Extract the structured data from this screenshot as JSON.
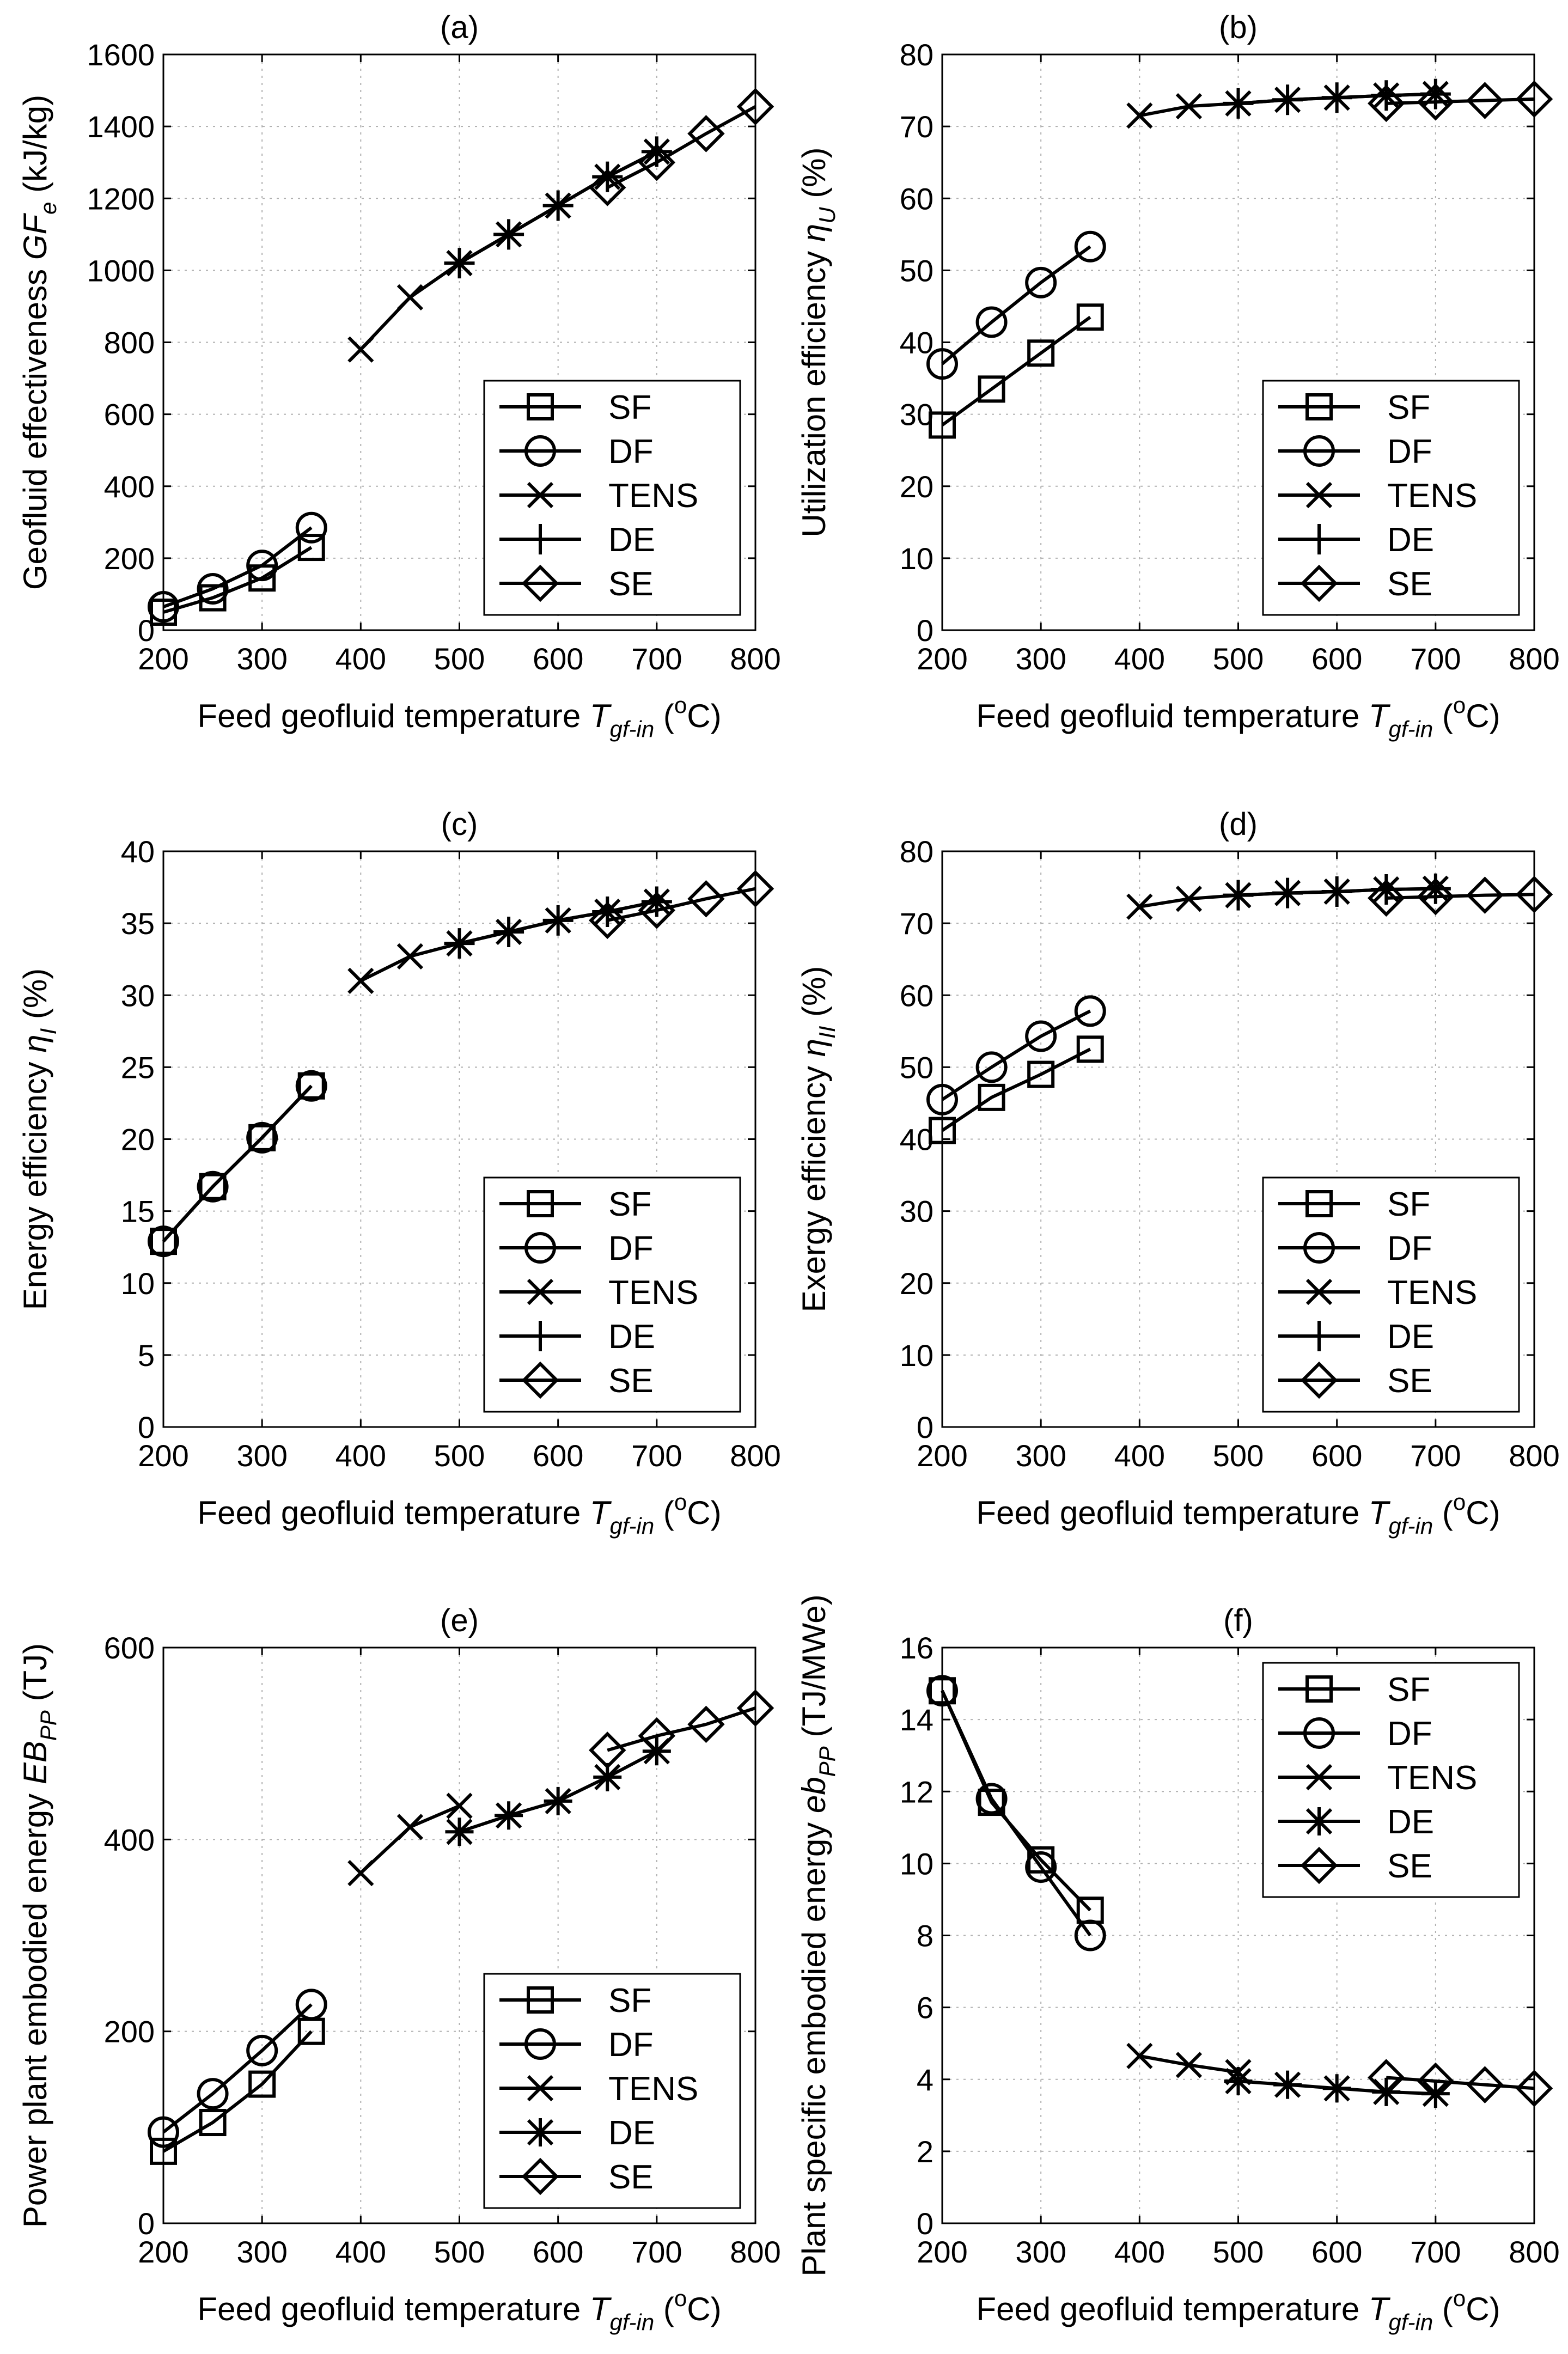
{
  "legend_labels": [
    "SF",
    "DF",
    "TENS",
    "DE",
    "SE"
  ],
  "xlabel": {
    "main": "Feed geofluid temperature ",
    "var": "T",
    "sub": "gf-in",
    "open": " (",
    "sup": "o",
    "close": "C)"
  },
  "chart_data": [
    {
      "type": "line",
      "title": "(a)",
      "ylabel": {
        "main": "Geofluid effectiveness  ",
        "var": "GF",
        "sub": "e",
        "unit": " (kJ/kg)"
      },
      "xlim": [
        200,
        800
      ],
      "ylim": [
        0,
        1600
      ],
      "xticks": [
        200,
        300,
        400,
        500,
        600,
        700,
        800
      ],
      "yticks": [
        0,
        200,
        400,
        600,
        800,
        1000,
        1200,
        1400,
        1600
      ],
      "grid": true,
      "legend_position": "lower-right",
      "series": [
        {
          "name": "SF",
          "marker": "square",
          "x": [
            200,
            250,
            300,
            350
          ],
          "y": [
            50,
            90,
            145,
            230
          ]
        },
        {
          "name": "DF",
          "marker": "circle",
          "x": [
            200,
            250,
            300,
            350
          ],
          "y": [
            65,
            115,
            180,
            285
          ]
        },
        {
          "name": "TENS",
          "marker": "x",
          "x": [
            400,
            450,
            500,
            550,
            600,
            650,
            700
          ],
          "y": [
            780,
            925,
            1020,
            1100,
            1180,
            1260,
            1330
          ]
        },
        {
          "name": "DE",
          "marker": "plus",
          "x": [
            500,
            550,
            600,
            650,
            700
          ],
          "y": [
            1020,
            1100,
            1180,
            1260,
            1330
          ]
        },
        {
          "name": "SE",
          "marker": "diamond",
          "x": [
            650,
            700,
            750,
            800
          ],
          "y": [
            1230,
            1300,
            1380,
            1455
          ]
        }
      ]
    },
    {
      "type": "line",
      "title": "(b)",
      "ylabel": {
        "main": "Utilization efficiency  ",
        "var": "η",
        "sub": "U",
        "unit": " (%)"
      },
      "xlim": [
        200,
        800
      ],
      "ylim": [
        0,
        80
      ],
      "xticks": [
        200,
        300,
        400,
        500,
        600,
        700,
        800
      ],
      "yticks": [
        0,
        10,
        20,
        30,
        40,
        50,
        60,
        70,
        80
      ],
      "grid": true,
      "legend_position": "lower-right",
      "series": [
        {
          "name": "SF",
          "marker": "square",
          "x": [
            200,
            250,
            300,
            350
          ],
          "y": [
            28.5,
            33.5,
            38.5,
            43.5
          ]
        },
        {
          "name": "DF",
          "marker": "circle",
          "x": [
            200,
            250,
            300,
            350
          ],
          "y": [
            37,
            42.8,
            48.3,
            53.3
          ]
        },
        {
          "name": "TENS",
          "marker": "x",
          "x": [
            400,
            450,
            500,
            550,
            600,
            650,
            700
          ],
          "y": [
            71.5,
            72.8,
            73.2,
            73.7,
            74,
            74.3,
            74.5
          ]
        },
        {
          "name": "DE",
          "marker": "plus",
          "x": [
            500,
            550,
            600,
            650,
            700
          ],
          "y": [
            73.2,
            73.7,
            74,
            74.3,
            74.5
          ]
        },
        {
          "name": "SE",
          "marker": "diamond",
          "x": [
            650,
            700,
            750,
            800
          ],
          "y": [
            73.2,
            73.4,
            73.6,
            73.8
          ]
        }
      ]
    },
    {
      "type": "line",
      "title": "(c)",
      "ylabel": {
        "main": "Energy efficiency  ",
        "var": "η",
        "sub": "I",
        "unit": "  (%)"
      },
      "xlim": [
        200,
        800
      ],
      "ylim": [
        0,
        40
      ],
      "xticks": [
        200,
        300,
        400,
        500,
        600,
        700,
        800
      ],
      "yticks": [
        0,
        5,
        10,
        15,
        20,
        25,
        30,
        35,
        40
      ],
      "grid": true,
      "legend_position": "lower-right",
      "series": [
        {
          "name": "SF",
          "marker": "square",
          "x": [
            200,
            250,
            300,
            350
          ],
          "y": [
            12.9,
            16.7,
            20.1,
            23.7
          ]
        },
        {
          "name": "DF",
          "marker": "circle",
          "x": [
            200,
            250,
            300,
            350
          ],
          "y": [
            12.9,
            16.7,
            20.1,
            23.7
          ]
        },
        {
          "name": "TENS",
          "marker": "x",
          "x": [
            400,
            450,
            500,
            550,
            600,
            650,
            700
          ],
          "y": [
            31,
            32.7,
            33.6,
            34.4,
            35.2,
            35.8,
            36.5
          ]
        },
        {
          "name": "DE",
          "marker": "plus",
          "x": [
            500,
            550,
            600,
            650,
            700
          ],
          "y": [
            33.6,
            34.4,
            35.2,
            35.8,
            36.5
          ]
        },
        {
          "name": "SE",
          "marker": "diamond",
          "x": [
            650,
            700,
            750,
            800
          ],
          "y": [
            35.2,
            35.9,
            36.7,
            37.4
          ]
        }
      ]
    },
    {
      "type": "line",
      "title": "(d)",
      "ylabel": {
        "main": "Exergy efficiency  ",
        "var": "η",
        "sub": "II",
        "unit": "  (%)"
      },
      "xlim": [
        200,
        800
      ],
      "ylim": [
        0,
        80
      ],
      "xticks": [
        200,
        300,
        400,
        500,
        600,
        700,
        800
      ],
      "yticks": [
        0,
        10,
        20,
        30,
        40,
        50,
        60,
        70,
        80
      ],
      "grid": true,
      "legend_position": "lower-right",
      "series": [
        {
          "name": "SF",
          "marker": "square",
          "x": [
            200,
            250,
            300,
            350
          ],
          "y": [
            41.2,
            45.8,
            49,
            52.5
          ]
        },
        {
          "name": "DF",
          "marker": "circle",
          "x": [
            200,
            250,
            300,
            350
          ],
          "y": [
            45.5,
            50,
            54.3,
            57.8
          ]
        },
        {
          "name": "TENS",
          "marker": "x",
          "x": [
            400,
            450,
            500,
            550,
            600,
            650,
            700
          ],
          "y": [
            72.3,
            73.4,
            73.9,
            74.2,
            74.4,
            74.7,
            74.8
          ]
        },
        {
          "name": "DE",
          "marker": "plus",
          "x": [
            500,
            550,
            600,
            650,
            700
          ],
          "y": [
            73.9,
            74.2,
            74.4,
            74.7,
            74.8
          ]
        },
        {
          "name": "SE",
          "marker": "diamond",
          "x": [
            650,
            700,
            750,
            800
          ],
          "y": [
            73.5,
            73.7,
            73.9,
            74
          ]
        }
      ]
    },
    {
      "type": "line",
      "title": "(e)",
      "ylabel": {
        "main": "Power plant embodied energy  ",
        "var": "EB",
        "sub": "PP",
        "unit": " (TJ)"
      },
      "xlim": [
        200,
        800
      ],
      "ylim": [
        0,
        600
      ],
      "xticks": [
        200,
        300,
        400,
        500,
        600,
        700,
        800
      ],
      "yticks": [
        0,
        200,
        400,
        600
      ],
      "grid": true,
      "legend_position": "lower-right",
      "series": [
        {
          "name": "SF",
          "marker": "square",
          "x": [
            200,
            250,
            300,
            350
          ],
          "y": [
            75,
            105,
            145,
            200
          ]
        },
        {
          "name": "DF",
          "marker": "circle",
          "x": [
            200,
            250,
            300,
            350
          ],
          "y": [
            95,
            135,
            180,
            228
          ]
        },
        {
          "name": "TENS",
          "marker": "x",
          "x": [
            400,
            450,
            500
          ],
          "y": [
            365,
            413,
            435
          ]
        },
        {
          "name": "DE",
          "marker": "asterisk",
          "x": [
            500,
            550,
            600,
            650,
            700
          ],
          "y": [
            408,
            425,
            440,
            465,
            492
          ]
        },
        {
          "name": "SE",
          "marker": "diamond",
          "x": [
            650,
            700,
            750,
            800
          ],
          "y": [
            493,
            508,
            520,
            537
          ]
        }
      ]
    },
    {
      "type": "line",
      "title": "(f)",
      "ylabel": {
        "main": "Plant specific embodied energy  ",
        "var": "eb",
        "sub": "PP",
        "unit": " (TJ/MWe)"
      },
      "xlim": [
        200,
        800
      ],
      "ylim": [
        0,
        16
      ],
      "xticks": [
        200,
        300,
        400,
        500,
        600,
        700,
        800
      ],
      "yticks": [
        0,
        2,
        4,
        6,
        8,
        10,
        12,
        14,
        16
      ],
      "grid": true,
      "legend_position": "upper-right",
      "series": [
        {
          "name": "SF",
          "marker": "square",
          "x": [
            200,
            250,
            300,
            350
          ],
          "y": [
            14.8,
            11.7,
            10.1,
            8.7
          ]
        },
        {
          "name": "DF",
          "marker": "circle",
          "x": [
            200,
            250,
            300,
            350
          ],
          "y": [
            14.8,
            11.8,
            9.9,
            8.0
          ]
        },
        {
          "name": "TENS",
          "marker": "x",
          "x": [
            400,
            450,
            500
          ],
          "y": [
            4.65,
            4.4,
            4.2
          ]
        },
        {
          "name": "DE",
          "marker": "asterisk",
          "x": [
            500,
            550,
            600,
            650,
            700
          ],
          "y": [
            3.95,
            3.85,
            3.75,
            3.65,
            3.6
          ]
        },
        {
          "name": "SE",
          "marker": "diamond",
          "x": [
            650,
            700,
            750,
            800
          ],
          "y": [
            4.05,
            3.95,
            3.85,
            3.75
          ]
        }
      ]
    }
  ]
}
